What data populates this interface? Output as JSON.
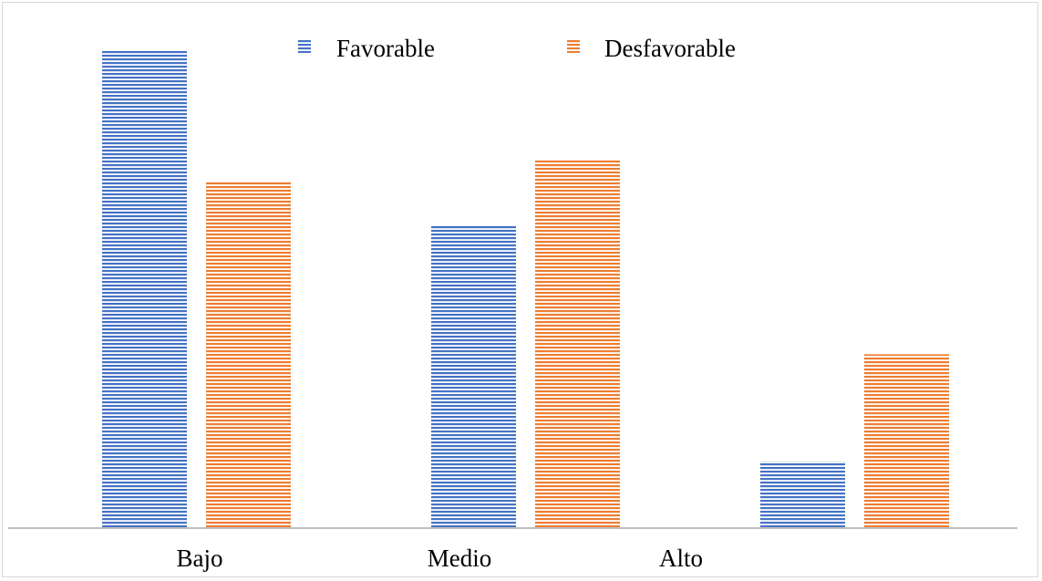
{
  "chart_data": {
    "type": "bar",
    "title": "",
    "xlabel": "",
    "ylabel": "",
    "categories": [
      "Bajo",
      "Medio",
      "Alto"
    ],
    "series": [
      {
        "name": "Favorable",
        "values": [
          43.5,
          27.5,
          6.0
        ],
        "color": "#4472c4"
      },
      {
        "name": "Desfavorable",
        "values": [
          31.5,
          33.5,
          15.8
        ],
        "color": "#ed7d31"
      }
    ],
    "ylim": [
      0,
      45
    ],
    "grid": false,
    "legend_position": "top"
  }
}
